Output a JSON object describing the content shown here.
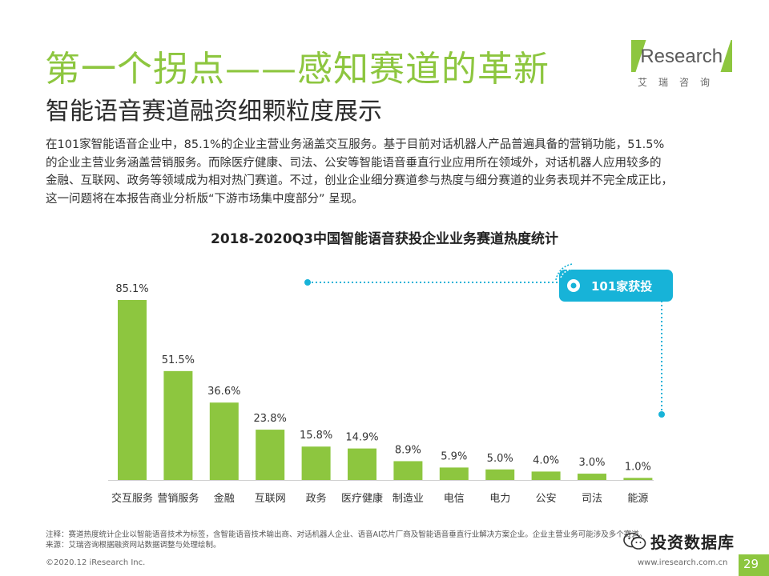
{
  "header": {
    "title": "第一个拐点——感知赛道的革新",
    "subtitle": "智能语音赛道融资细颗粒度展示",
    "logo_text_i": "i",
    "logo_text_rest": "Research",
    "logo_sub": "艾瑞咨询"
  },
  "description": [
    "在101家智能语音企业中，85.1%的企业主营业务涵盖交互服务。基于目前对话机器人产品普遍具备的营销功能，51.5%",
    "的企业主营业务涵盖营销服务。而除医疗健康、司法、公安等智能语音垂直行业应用所在领域外，对话机器人应用较多的",
    "金融、互联网、政务等领域成为相对热门赛道。不过，创业企业细分赛道参与热度与细分赛道的业务表现并不完全成正比，",
    "这一问题将在本报告商业分析版“下游市场集中度部分” 呈现。"
  ],
  "chart_data": {
    "type": "bar",
    "title": "2018-2020Q3中国智能语音获投企业业务赛道热度统计",
    "categories": [
      "交互服务",
      "营销服务",
      "金融",
      "互联网",
      "政务",
      "医疗健康",
      "制造业",
      "电信",
      "电力",
      "公安",
      "司法",
      "能源"
    ],
    "values": [
      85.1,
      51.5,
      36.6,
      23.8,
      15.8,
      14.9,
      8.9,
      5.9,
      5.0,
      4.0,
      3.0,
      1.0
    ],
    "value_labels": [
      "85.1%",
      "51.5%",
      "36.6%",
      "23.8%",
      "15.8%",
      "14.9%",
      "8.9%",
      "5.9%",
      "5.0%",
      "4.0%",
      "3.0%",
      "1.0%"
    ],
    "ylim": [
      0,
      85.1
    ],
    "xlabel": "",
    "ylabel": "",
    "grid": false,
    "bar_color": "#8dc63f",
    "annotation": "101家获投",
    "annotation_color": "#17b3d8"
  },
  "footer": {
    "note": "注释：赛道热度统计企业以智能语音技术为标签，含智能语音技术输出商、对话机器人企业、语音AI芯片厂商及智能语音垂直行业解决方案企业。企业主营业务可能涉及多个赛道。",
    "source": "来源：艾瑞咨询根据融资网站数据调整与处理绘制。",
    "copyright": "©2020.12 iResearch Inc.",
    "url": "www.iresearch.com.cn",
    "page": "29",
    "watermark": "投资数据库"
  }
}
